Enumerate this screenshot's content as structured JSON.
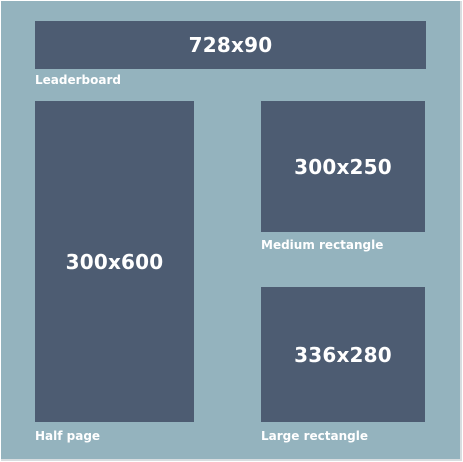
{
  "colors": {
    "background": "#94b3be",
    "box": "#4d5c72",
    "text": "#ffffff"
  },
  "ads": {
    "leaderboard": {
      "size": "728x90",
      "label": "Leaderboard"
    },
    "half_page": {
      "size": "300x600",
      "label": "Half page"
    },
    "medium_rectangle": {
      "size": "300x250",
      "label": "Medium rectangle"
    },
    "large_rectangle": {
      "size": "336x280",
      "label": "Large rectangle"
    }
  }
}
